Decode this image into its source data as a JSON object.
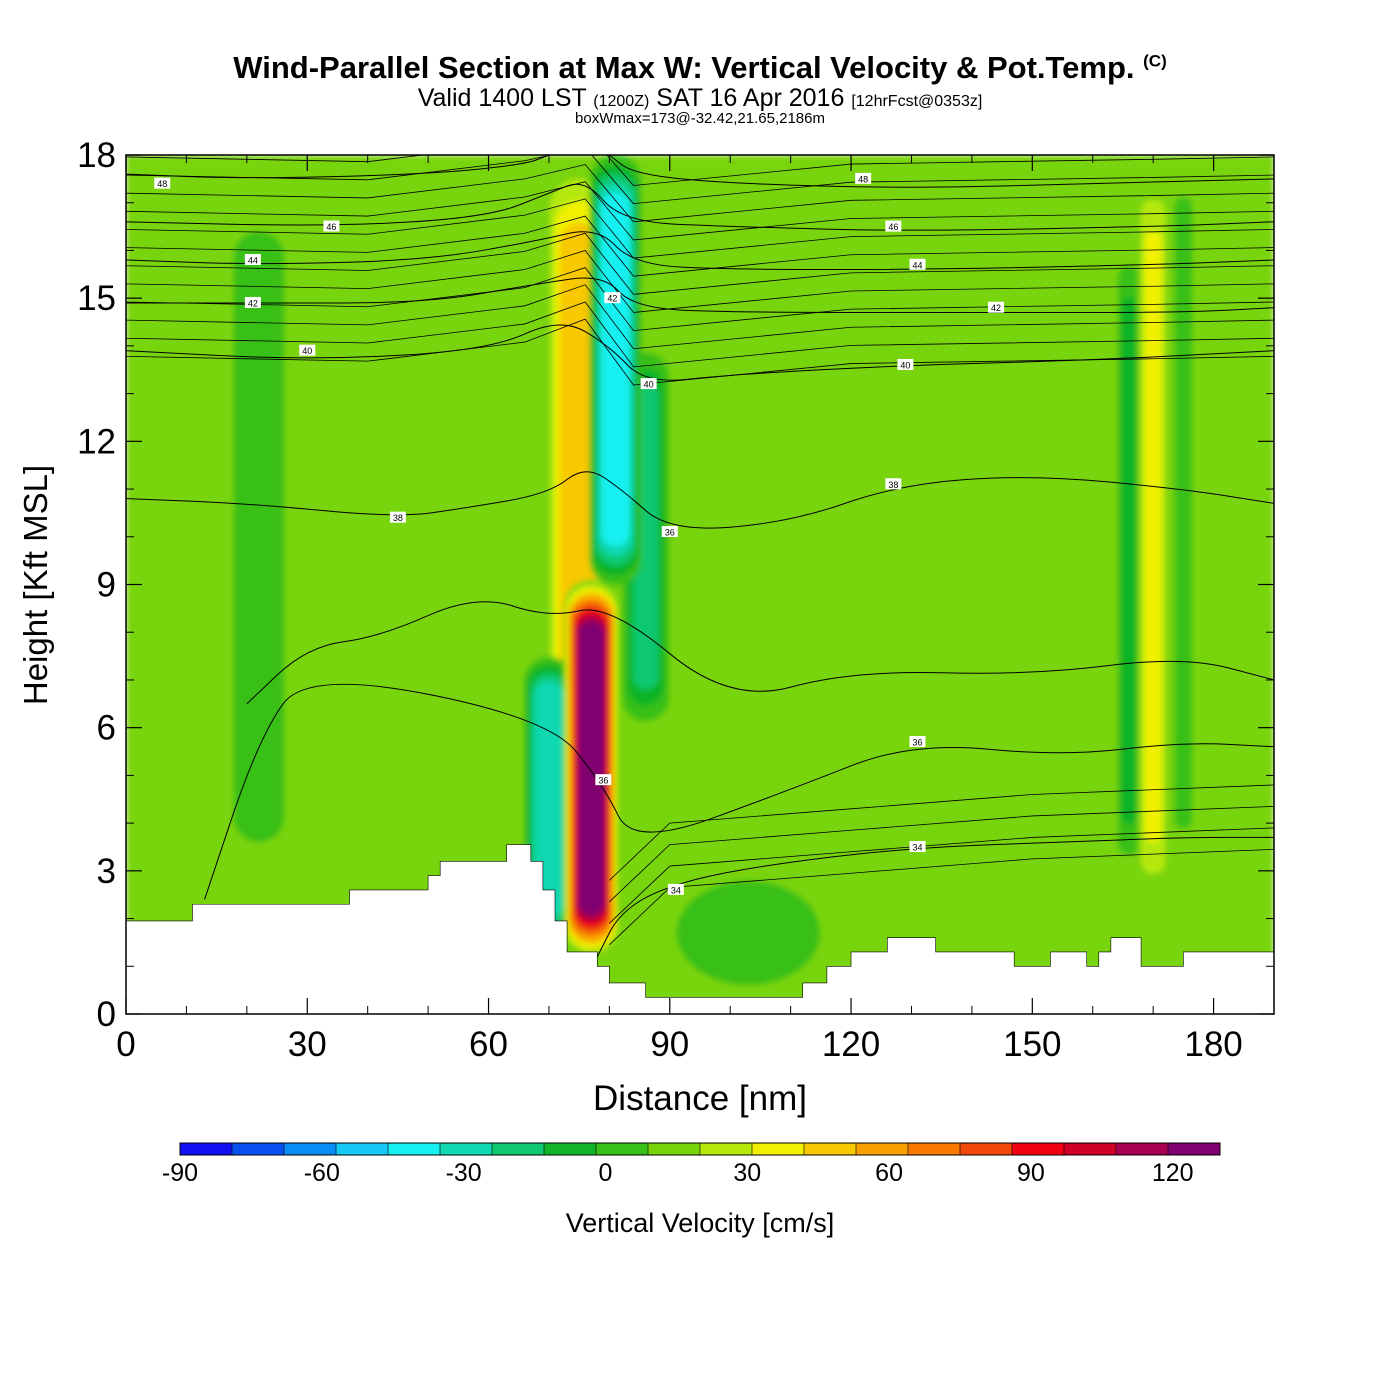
{
  "header": {
    "title": "Wind-Parallel Section at Max W: Vertical Velocity & Pot.Temp.",
    "copyright": "(C)",
    "valid_prefix": "Valid 1400 LST",
    "utc": "(1200Z)",
    "date": "SAT 16 Apr 2016",
    "forecast": "[12hrFcst@0353z]",
    "box_info": "boxWmax=173@-32.42,21.65,2186m"
  },
  "chart_data": {
    "type": "heatmap",
    "title": "Wind-Parallel Section at Max W: Vertical Velocity & Pot.Temp.",
    "xlabel": "Distance [nm]",
    "ylabel": "Height [Kft MSL]",
    "xlim": [
      0,
      190
    ],
    "ylim": [
      0,
      18
    ],
    "x_ticks": [
      0,
      30,
      60,
      90,
      120,
      150,
      180
    ],
    "y_ticks": [
      0,
      3,
      6,
      9,
      12,
      15,
      18
    ],
    "colorbar": {
      "label": "Vertical Velocity [cm/s]",
      "min": -90,
      "max": 130,
      "step": 10,
      "tick_values": [
        -90,
        -60,
        -30,
        0,
        30,
        60,
        90,
        120
      ],
      "colors": [
        "#1010f0",
        "#0a4ff0",
        "#0a8cf5",
        "#16c8f5",
        "#16f0f0",
        "#10d8b0",
        "#10c870",
        "#10b428",
        "#38c018",
        "#78d408",
        "#b4e808",
        "#f0f000",
        "#f8c800",
        "#f8a000",
        "#f87800",
        "#f04808",
        "#f00010",
        "#d00028",
        "#a80050",
        "#800070"
      ]
    },
    "velocity_features": [
      {
        "x_center": 77,
        "x_halfwidth": 3,
        "y_bottom": 1.3,
        "y_top": 9,
        "value": 110
      },
      {
        "x_center": 75,
        "x_halfwidth": 4,
        "y_bottom": 1.5,
        "y_top": 18,
        "value": 45
      },
      {
        "x_center": 81,
        "x_halfwidth": 3,
        "y_bottom": 9,
        "y_top": 18,
        "value": -55
      },
      {
        "x_center": 70,
        "x_halfwidth": 3,
        "y_bottom": 1.5,
        "y_top": 7.5,
        "value": -45
      },
      {
        "x_center": 86,
        "x_halfwidth": 3,
        "y_bottom": 6,
        "y_top": 14,
        "value": -30
      },
      {
        "x_center": 170,
        "x_halfwidth": 2,
        "y_bottom": 2,
        "y_top": 18,
        "value": 30
      },
      {
        "x_center": 166,
        "x_halfwidth": 1.5,
        "y_bottom": 3,
        "y_top": 16,
        "value": -25
      },
      {
        "x_center": 175,
        "x_halfwidth": 1.5,
        "y_bottom": 3,
        "y_top": 18,
        "value": -15
      },
      {
        "x_center": 95,
        "x_halfwidth": 6,
        "y_bottom": 10,
        "y_top": 18,
        "value": 15
      },
      {
        "x_center": 135,
        "x_halfwidth": 5,
        "y_bottom": 11,
        "y_top": 18,
        "value": 12
      },
      {
        "x_center": 40,
        "x_halfwidth": 6,
        "y_bottom": 2.5,
        "y_top": 12,
        "value": 5
      },
      {
        "x_center": 22,
        "x_halfwidth": 6,
        "y_bottom": 2,
        "y_top": 18,
        "value": -8
      },
      {
        "x_center": 103,
        "x_halfwidth": 14,
        "y_bottom": 0.4,
        "y_top": 3,
        "value": -12
      }
    ],
    "terrain_profile": [
      [
        0,
        1.95
      ],
      [
        11,
        1.95
      ],
      [
        11,
        2.3
      ],
      [
        37,
        2.3
      ],
      [
        37,
        2.6
      ],
      [
        50,
        2.6
      ],
      [
        50,
        2.9
      ],
      [
        52,
        2.9
      ],
      [
        52,
        3.2
      ],
      [
        63,
        3.2
      ],
      [
        63,
        3.55
      ],
      [
        67,
        3.55
      ],
      [
        67,
        3.2
      ],
      [
        69,
        3.2
      ],
      [
        69,
        2.6
      ],
      [
        71,
        2.6
      ],
      [
        71,
        1.95
      ],
      [
        73,
        1.95
      ],
      [
        73,
        1.3
      ],
      [
        78,
        1.3
      ],
      [
        78,
        1.0
      ],
      [
        80,
        1.0
      ],
      [
        80,
        0.65
      ],
      [
        86,
        0.65
      ],
      [
        86,
        0.35
      ],
      [
        112,
        0.35
      ],
      [
        112,
        0.65
      ],
      [
        116,
        0.65
      ],
      [
        116,
        1.0
      ],
      [
        120,
        1.0
      ],
      [
        120,
        1.3
      ],
      [
        126,
        1.3
      ],
      [
        126,
        1.6
      ],
      [
        134,
        1.6
      ],
      [
        134,
        1.3
      ],
      [
        147,
        1.3
      ],
      [
        147,
        1.0
      ],
      [
        153,
        1.0
      ],
      [
        153,
        1.3
      ],
      [
        159,
        1.3
      ],
      [
        159,
        1.0
      ],
      [
        161,
        1.0
      ],
      [
        161,
        1.3
      ],
      [
        163,
        1.3
      ],
      [
        163,
        1.6
      ],
      [
        168,
        1.6
      ],
      [
        168,
        1.0
      ],
      [
        175,
        1.0
      ],
      [
        175,
        1.3
      ],
      [
        190,
        1.3
      ]
    ],
    "theta_series": [
      {
        "name": "48",
        "points": [
          [
            0,
            17.6
          ],
          [
            20,
            17.5
          ],
          [
            50,
            17.6
          ],
          [
            66,
            17.8
          ],
          [
            70,
            18
          ]
        ]
      },
      {
        "name": "48",
        "points": [
          [
            80,
            18
          ],
          [
            84,
            17.6
          ],
          [
            100,
            17.4
          ],
          [
            130,
            17.3
          ],
          [
            160,
            17.4
          ],
          [
            190,
            17.5
          ]
        ]
      },
      {
        "name": "46",
        "points": [
          [
            0,
            16.6
          ],
          [
            35,
            16.5
          ],
          [
            60,
            16.7
          ],
          [
            70,
            17.2
          ],
          [
            76,
            17.5
          ],
          [
            82,
            16.6
          ],
          [
            100,
            16.5
          ],
          [
            130,
            16.4
          ],
          [
            170,
            16.5
          ],
          [
            190,
            16.6
          ]
        ]
      },
      {
        "name": "44",
        "points": [
          [
            0,
            15.8
          ],
          [
            22,
            15.7
          ],
          [
            50,
            15.8
          ],
          [
            68,
            16.2
          ],
          [
            78,
            16.5
          ],
          [
            84,
            15.7
          ],
          [
            100,
            15.6
          ],
          [
            133,
            15.6
          ],
          [
            170,
            15.7
          ],
          [
            190,
            15.8
          ]
        ]
      },
      {
        "name": "42",
        "points": [
          [
            0,
            14.9
          ],
          [
            22,
            14.9
          ],
          [
            50,
            14.9
          ],
          [
            68,
            15.3
          ],
          [
            79,
            15.5
          ],
          [
            84,
            14.8
          ],
          [
            100,
            14.7
          ],
          [
            146,
            14.7
          ],
          [
            175,
            14.7
          ],
          [
            190,
            14.8
          ]
        ]
      },
      {
        "name": "40",
        "points": [
          [
            0,
            13.9
          ],
          [
            30,
            13.7
          ],
          [
            60,
            13.9
          ],
          [
            72,
            14.6
          ],
          [
            80,
            14.0
          ],
          [
            86,
            13.2
          ],
          [
            100,
            13.4
          ],
          [
            130,
            13.6
          ],
          [
            160,
            13.7
          ],
          [
            190,
            13.9
          ]
        ]
      },
      {
        "name": "38",
        "points": [
          [
            0,
            10.8
          ],
          [
            20,
            10.7
          ],
          [
            45,
            10.4
          ],
          [
            56,
            10.6
          ],
          [
            70,
            10.9
          ],
          [
            76,
            11.5
          ],
          [
            82,
            11.0
          ],
          [
            90,
            10.1
          ],
          [
            110,
            10.3
          ],
          [
            128,
            11.1
          ],
          [
            150,
            11.3
          ],
          [
            175,
            11.0
          ],
          [
            190,
            10.7
          ]
        ]
      },
      {
        "name": "",
        "points": [
          [
            20,
            6.5
          ],
          [
            30,
            7.7
          ],
          [
            42,
            7.9
          ],
          [
            58,
            8.8
          ],
          [
            70,
            8.3
          ],
          [
            80,
            8.6
          ],
          [
            100,
            6.5
          ],
          [
            120,
            7.2
          ],
          [
            150,
            7.1
          ],
          [
            175,
            7.5
          ],
          [
            190,
            7.0
          ]
        ]
      },
      {
        "name": "36",
        "points": [
          [
            13,
            2.4
          ],
          [
            22,
            5.8
          ],
          [
            30,
            7.2
          ],
          [
            70,
            6.2
          ],
          [
            79,
            4.8
          ],
          [
            84,
            3.5
          ],
          [
            110,
            4.7
          ],
          [
            130,
            5.7
          ],
          [
            155,
            5.4
          ],
          [
            175,
            5.7
          ],
          [
            190,
            5.6
          ]
        ]
      },
      {
        "name": "34",
        "points": [
          [
            78,
            1.2
          ],
          [
            82,
            2.2
          ],
          [
            92,
            2.8
          ],
          [
            110,
            3.2
          ],
          [
            132,
            3.5
          ],
          [
            155,
            3.6
          ],
          [
            175,
            3.7
          ],
          [
            190,
            3.7
          ]
        ]
      }
    ],
    "theta_label_values": [
      "48",
      "48",
      "46",
      "46",
      "44",
      "44",
      "42",
      "42",
      "42",
      "40",
      "40",
      "40",
      "38",
      "38",
      "36",
      "36",
      "36",
      "34",
      "34"
    ]
  }
}
